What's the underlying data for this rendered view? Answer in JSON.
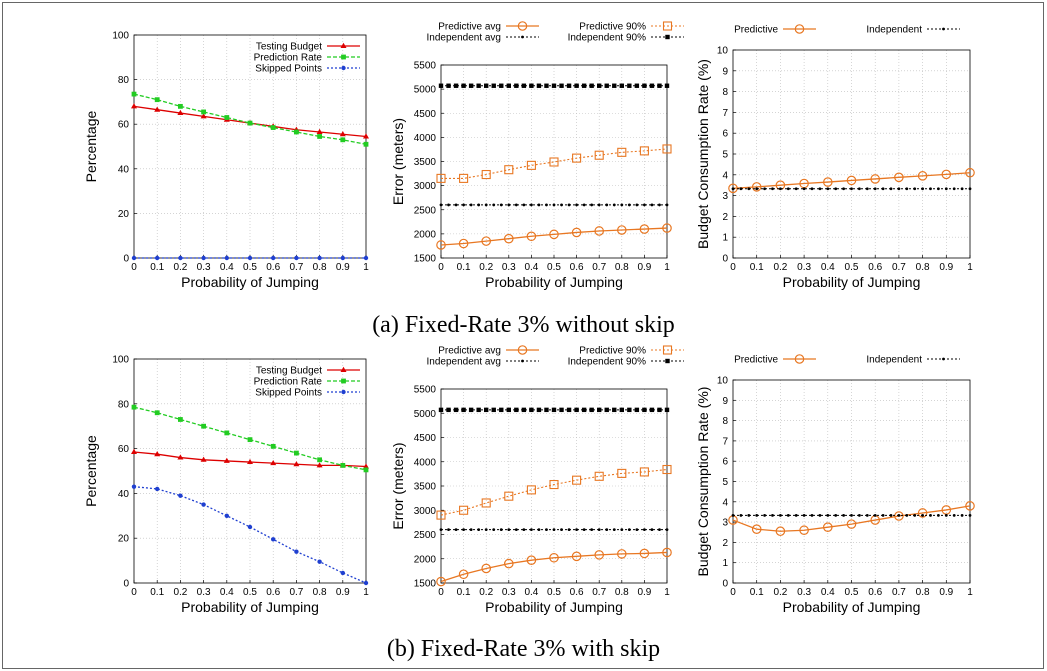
{
  "captions": {
    "a": "(a) Fixed-Rate 3% without skip",
    "b": "(b) Fixed-Rate 3% with skip"
  },
  "colors": {
    "testing_budget": "#dd0000",
    "prediction_rate": "#22cc22",
    "skipped_points": "#1f3fd0",
    "predictive": "#e87722",
    "independent": "#000000",
    "grid": "#bbbbbb"
  },
  "chart_data": [
    {
      "id": "a1",
      "type": "line",
      "grid": true,
      "legend": "top-right",
      "xlabel": "Probability of Jumping",
      "ylabel": "Percentage",
      "xlim": [
        0,
        1
      ],
      "ylim": [
        0,
        100
      ],
      "x": [
        0,
        0.1,
        0.2,
        0.3,
        0.4,
        0.5,
        0.6,
        0.7,
        0.8,
        0.9,
        1
      ],
      "xticks": [
        "0",
        "0.1",
        "0.2",
        "0.3",
        "0.4",
        "0.5",
        "0.6",
        "0.7",
        "0.8",
        "0.9",
        "1"
      ],
      "yticks": [
        0,
        20,
        40,
        60,
        80,
        100
      ],
      "series": [
        {
          "name": "Testing Budget",
          "style": "testing",
          "values": [
            68,
            66.5,
            65,
            63.5,
            62,
            60.5,
            59,
            57.5,
            56.5,
            55.5,
            54.5
          ]
        },
        {
          "name": "Prediction Rate",
          "style": "prediction",
          "values": [
            73.5,
            71,
            68,
            65.5,
            63,
            60.5,
            58.5,
            56.5,
            54.5,
            53,
            51
          ]
        },
        {
          "name": "Skipped Points",
          "style": "skipped",
          "values": [
            0,
            0,
            0,
            0,
            0,
            0,
            0,
            0,
            0,
            0,
            0
          ]
        }
      ]
    },
    {
      "id": "a2",
      "type": "line",
      "grid": true,
      "legend": "top",
      "xlabel": "Probability of Jumping",
      "ylabel": "Error (meters)",
      "xlim": [
        0,
        1
      ],
      "ylim": [
        1500,
        5500
      ],
      "x": [
        0,
        0.1,
        0.2,
        0.3,
        0.4,
        0.5,
        0.6,
        0.7,
        0.8,
        0.9,
        1
      ],
      "xticks": [
        "0",
        "0.1",
        "0.2",
        "0.3",
        "0.4",
        "0.5",
        "0.6",
        "0.7",
        "0.8",
        "0.9",
        "1"
      ],
      "yticks": [
        1500,
        2000,
        2500,
        3000,
        3500,
        4000,
        4500,
        5000,
        5500
      ],
      "series": [
        {
          "name": "Predictive avg",
          "style": "pred_avg",
          "values": [
            1770,
            1800,
            1850,
            1900,
            1950,
            1990,
            2030,
            2060,
            2080,
            2100,
            2120
          ]
        },
        {
          "name": "Predictive 90%",
          "style": "pred_90",
          "values": [
            3150,
            3150,
            3230,
            3330,
            3420,
            3490,
            3570,
            3630,
            3690,
            3720,
            3760
          ]
        },
        {
          "name": "Independent avg",
          "style": "ind_avg",
          "values": [
            2600,
            2600,
            2600,
            2600,
            2600,
            2600,
            2600,
            2600,
            2600,
            2600,
            2600
          ]
        },
        {
          "name": "Independent 90%",
          "style": "ind_90",
          "values": [
            5070,
            5070,
            5070,
            5070,
            5070,
            5070,
            5070,
            5070,
            5070,
            5070,
            5070
          ]
        }
      ]
    },
    {
      "id": "a3",
      "type": "line",
      "grid": true,
      "legend": "top",
      "xlabel": "Probability of Jumping",
      "ylabel": "Budget Consumption Rate (%)",
      "xlim": [
        0,
        1
      ],
      "ylim": [
        0,
        10
      ],
      "x": [
        0,
        0.1,
        0.2,
        0.3,
        0.4,
        0.5,
        0.6,
        0.7,
        0.8,
        0.9,
        1
      ],
      "xticks": [
        "0",
        "0.1",
        "0.2",
        "0.3",
        "0.4",
        "0.5",
        "0.6",
        "0.7",
        "0.8",
        "0.9",
        "1"
      ],
      "yticks": [
        0,
        1,
        2,
        3,
        4,
        5,
        6,
        7,
        8,
        9,
        10
      ],
      "series": [
        {
          "name": "Predictive",
          "style": "pred_avg",
          "values": [
            3.35,
            3.42,
            3.5,
            3.58,
            3.65,
            3.73,
            3.8,
            3.88,
            3.95,
            4.02,
            4.1
          ]
        },
        {
          "name": "Independent",
          "style": "ind_avg",
          "values": [
            3.33,
            3.33,
            3.33,
            3.33,
            3.33,
            3.33,
            3.33,
            3.33,
            3.33,
            3.33,
            3.33
          ]
        }
      ]
    },
    {
      "id": "b1",
      "type": "line",
      "grid": true,
      "legend": "top-right",
      "xlabel": "Probability of Jumping",
      "ylabel": "Percentage",
      "xlim": [
        0,
        1
      ],
      "ylim": [
        0,
        100
      ],
      "x": [
        0,
        0.1,
        0.2,
        0.3,
        0.4,
        0.5,
        0.6,
        0.7,
        0.8,
        0.9,
        1
      ],
      "xticks": [
        "0",
        "0.1",
        "0.2",
        "0.3",
        "0.4",
        "0.5",
        "0.6",
        "0.7",
        "0.8",
        "0.9",
        "1"
      ],
      "yticks": [
        0,
        20,
        40,
        60,
        80,
        100
      ],
      "series": [
        {
          "name": "Testing Budget",
          "style": "testing",
          "values": [
            58.5,
            57.5,
            56,
            55,
            54.5,
            54,
            53.5,
            53,
            52.5,
            52.5,
            52
          ]
        },
        {
          "name": "Prediction Rate",
          "style": "prediction",
          "values": [
            78.5,
            76,
            73,
            70,
            67,
            64,
            61,
            58,
            55,
            52.5,
            50.5
          ]
        },
        {
          "name": "Skipped Points",
          "style": "skipped",
          "values": [
            43,
            42,
            39,
            35,
            30,
            25,
            19.5,
            14,
            9.5,
            4.5,
            0
          ]
        }
      ]
    },
    {
      "id": "b2",
      "type": "line",
      "grid": true,
      "legend": "top",
      "xlabel": "Probability of Jumping",
      "ylabel": "Error (meters)",
      "xlim": [
        0,
        1
      ],
      "ylim": [
        1500,
        5500
      ],
      "x": [
        0,
        0.1,
        0.2,
        0.3,
        0.4,
        0.5,
        0.6,
        0.7,
        0.8,
        0.9,
        1
      ],
      "xticks": [
        "0",
        "0.1",
        "0.2",
        "0.3",
        "0.4",
        "0.5",
        "0.6",
        "0.7",
        "0.8",
        "0.9",
        "1"
      ],
      "yticks": [
        1500,
        2000,
        2500,
        3000,
        3500,
        4000,
        4500,
        5000,
        5500
      ],
      "series": [
        {
          "name": "Predictive avg",
          "style": "pred_avg",
          "values": [
            1530,
            1680,
            1800,
            1900,
            1970,
            2020,
            2050,
            2080,
            2100,
            2110,
            2130
          ]
        },
        {
          "name": "Predictive 90%",
          "style": "pred_90",
          "values": [
            2900,
            3000,
            3150,
            3290,
            3420,
            3530,
            3620,
            3700,
            3760,
            3790,
            3840
          ]
        },
        {
          "name": "Independent avg",
          "style": "ind_avg",
          "values": [
            2600,
            2600,
            2600,
            2600,
            2600,
            2600,
            2600,
            2600,
            2600,
            2600,
            2600
          ]
        },
        {
          "name": "Independent 90%",
          "style": "ind_90",
          "values": [
            5070,
            5070,
            5070,
            5070,
            5070,
            5070,
            5070,
            5070,
            5070,
            5070,
            5070
          ]
        }
      ]
    },
    {
      "id": "b3",
      "type": "line",
      "grid": true,
      "legend": "top",
      "xlabel": "Probability of Jumping",
      "ylabel": "Budget Consumption Rate (%)",
      "xlim": [
        0,
        1
      ],
      "ylim": [
        0,
        10
      ],
      "x": [
        0,
        0.1,
        0.2,
        0.3,
        0.4,
        0.5,
        0.6,
        0.7,
        0.8,
        0.9,
        1
      ],
      "xticks": [
        "0",
        "0.1",
        "0.2",
        "0.3",
        "0.4",
        "0.5",
        "0.6",
        "0.7",
        "0.8",
        "0.9",
        "1"
      ],
      "yticks": [
        0,
        1,
        2,
        3,
        4,
        5,
        6,
        7,
        8,
        9,
        10
      ],
      "series": [
        {
          "name": "Predictive",
          "style": "pred_avg",
          "values": [
            3.1,
            2.65,
            2.55,
            2.6,
            2.75,
            2.9,
            3.1,
            3.3,
            3.45,
            3.6,
            3.8
          ]
        },
        {
          "name": "Independent",
          "style": "ind_avg",
          "values": [
            3.33,
            3.33,
            3.33,
            3.33,
            3.33,
            3.33,
            3.33,
            3.33,
            3.33,
            3.33,
            3.33
          ]
        }
      ]
    }
  ]
}
